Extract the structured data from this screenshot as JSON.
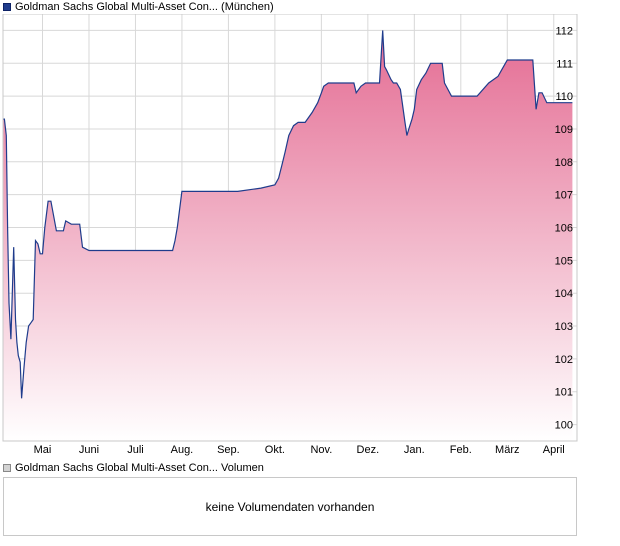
{
  "legend": {
    "price_label": "Goldman Sachs Global Multi-Asset Con... (München)",
    "volume_label": "Goldman Sachs Global Multi-Asset Con... Volumen"
  },
  "volume_panel": {
    "message": "keine Volumendaten vorhanden"
  },
  "colors": {
    "line": "#1f3c8c",
    "area_top": "#e46c93",
    "area_bottom": "#ffffff",
    "grid": "#d8d8d8",
    "frame": "#c8c8c8"
  },
  "chart_data": {
    "type": "area",
    "title": "",
    "xlabel": "",
    "ylabel": "",
    "ylim": [
      99.5,
      112.5
    ],
    "yticks": [
      100,
      101,
      102,
      103,
      104,
      105,
      106,
      107,
      108,
      109,
      110,
      111,
      112
    ],
    "ytick_side": "right",
    "grid": true,
    "x_tick_labels": [
      "Mai",
      "Juni",
      "Juli",
      "Aug.",
      "Sep.",
      "Okt.",
      "Nov.",
      "Dez.",
      "Jan.",
      "Feb.",
      "März",
      "April"
    ],
    "x_tick_positions": [
      0.5,
      1.5,
      2.5,
      3.5,
      4.5,
      5.5,
      6.5,
      7.5,
      8.5,
      9.5,
      10.5,
      11.5
    ],
    "xlim": [
      -0.35,
      12.0
    ],
    "series": [
      {
        "x": [
          -0.35,
          -0.32,
          -0.28,
          -0.25,
          -0.22,
          -0.18,
          -0.15,
          -0.12,
          -0.08,
          -0.05,
          -0.02,
          0.02,
          0.05,
          0.1,
          0.15,
          0.2,
          0.25,
          0.3,
          0.35,
          0.4,
          0.45,
          0.5,
          0.55,
          0.62,
          0.68,
          0.8,
          0.95,
          1.0,
          1.12,
          1.22,
          1.3,
          1.36,
          1.5,
          1.65,
          1.68,
          1.75,
          2.0,
          2.5,
          3.0,
          3.3,
          3.35,
          3.4,
          3.5,
          3.6,
          4.0,
          4.5,
          4.7,
          5.2,
          5.5,
          5.58,
          5.65,
          5.72,
          5.8,
          5.9,
          6.0,
          6.15,
          6.3,
          6.42,
          6.5,
          6.55,
          6.65,
          7.2,
          7.25,
          7.35,
          7.45,
          7.75,
          7.82,
          7.86,
          7.9,
          8.0,
          8.05,
          8.12,
          8.2,
          8.3,
          8.34,
          8.38,
          8.45,
          8.5,
          8.55,
          8.65,
          8.75,
          8.85,
          8.95,
          9.1,
          9.15,
          9.3,
          9.6,
          9.85,
          10.1,
          10.3,
          10.38,
          10.5,
          10.6,
          10.7,
          11.05,
          11.12,
          11.18,
          11.25,
          11.35,
          11.4,
          11.6,
          11.9
        ],
        "y": [
          109.3,
          109.3,
          108.8,
          106.0,
          103.7,
          102.6,
          104.0,
          105.4,
          103.2,
          102.5,
          102.1,
          101.9,
          100.8,
          101.7,
          102.5,
          103.0,
          103.1,
          103.2,
          105.6,
          105.5,
          105.2,
          105.2,
          106.0,
          106.8,
          106.8,
          105.9,
          105.9,
          106.2,
          106.1,
          106.1,
          106.1,
          105.4,
          105.3,
          105.3,
          105.3,
          105.3,
          105.3,
          105.3,
          105.3,
          105.3,
          105.6,
          106.0,
          107.1,
          107.1,
          107.1,
          107.1,
          107.1,
          107.2,
          107.3,
          107.5,
          107.9,
          108.3,
          108.8,
          109.1,
          109.2,
          109.2,
          109.5,
          109.8,
          110.1,
          110.3,
          110.4,
          110.4,
          110.1,
          110.3,
          110.4,
          110.4,
          112.0,
          110.9,
          110.8,
          110.5,
          110.4,
          110.4,
          110.2,
          109.2,
          108.8,
          109.0,
          109.3,
          109.6,
          110.2,
          110.5,
          110.7,
          111.0,
          111.0,
          111.0,
          110.4,
          110.0,
          110.0,
          110.0,
          110.4,
          110.6,
          110.8,
          111.1,
          111.1,
          111.1,
          111.1,
          109.6,
          110.1,
          110.1,
          109.8,
          109.8,
          109.8,
          109.8
        ]
      }
    ]
  }
}
